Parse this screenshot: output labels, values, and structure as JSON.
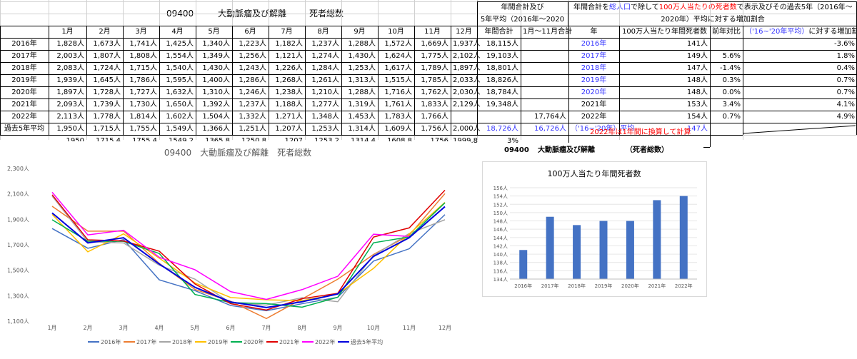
{
  "header": {
    "code": "09400",
    "disease": "大動脈瘤及び解離",
    "metric": "死者総数",
    "box1_line1": "年間合計及び",
    "box1_line2": "5年平均（2016年～2020",
    "box2_pre": "年間合計を",
    "box2_blue1": "総人口",
    "box2_mid1": "で除して",
    "box2_red": "100万人当たりの死者数",
    "box2_post": "で表示及びその過去5年（2016年～",
    "box2_line2": "2020年）平均に対する増加割合"
  },
  "columns": [
    "1月",
    "2月",
    "3月",
    "4月",
    "5月",
    "6月",
    "7月",
    "8月",
    "9月",
    "10月",
    "11月",
    "12月",
    "年間合計",
    "1月～11月合計"
  ],
  "rcolumns": {
    "year": "年",
    "per_million": "100万人当たり年間死者数",
    "yoy": "前年対比",
    "inc_blue": "（'16~'20年平均）",
    "inc_black": "に対する増加割合"
  },
  "rows": [
    {
      "label": "2016年",
      "m": [
        "1,828人",
        "1,673人",
        "1,741人",
        "1,425人",
        "1,340人",
        "1,223人",
        "1,182人",
        "1,237人",
        "1,288人",
        "1,572人",
        "1,669人",
        "1,937人"
      ],
      "total": "18,115人",
      "jan_nov": "",
      "year": "2016年",
      "pm": "141人",
      "yoy": "",
      "inc": "-3.6%",
      "year_blue": true
    },
    {
      "label": "2017年",
      "m": [
        "2,003人",
        "1,807人",
        "1,808人",
        "1,554人",
        "1,349人",
        "1,256人",
        "1,121人",
        "1,274人",
        "1,430人",
        "1,624人",
        "1,775人",
        "2,102人"
      ],
      "total": "19,103人",
      "jan_nov": "",
      "year": "2017年",
      "pm": "149人",
      "yoy": "5.6%",
      "inc": "1.8%",
      "year_blue": true
    },
    {
      "label": "2018年",
      "m": [
        "2,083人",
        "1,724人",
        "1,715人",
        "1,540人",
        "1,430人",
        "1,243人",
        "1,226人",
        "1,284人",
        "1,253人",
        "1,617人",
        "1,789人",
        "1,897人"
      ],
      "total": "18,801人",
      "jan_nov": "",
      "year": "2018年",
      "pm": "147人",
      "yoy": "-1.4%",
      "inc": "0.4%",
      "year_blue": true
    },
    {
      "label": "2019年",
      "m": [
        "1,939人",
        "1,645人",
        "1,786人",
        "1,595人",
        "1,400人",
        "1,286人",
        "1,268人",
        "1,261人",
        "1,313人",
        "1,515人",
        "1,785人",
        "2,033人"
      ],
      "total": "18,826人",
      "jan_nov": "",
      "year": "2019年",
      "pm": "148人",
      "yoy": "0.3%",
      "inc": "0.7%",
      "year_blue": true
    },
    {
      "label": "2020年",
      "m": [
        "1,897人",
        "1,728人",
        "1,727人",
        "1,632人",
        "1,310人",
        "1,246人",
        "1,238人",
        "1,210人",
        "1,288人",
        "1,716人",
        "1,762人",
        "2,030人"
      ],
      "total": "18,784人",
      "jan_nov": "",
      "year": "2020年",
      "pm": "148人",
      "yoy": "0.0%",
      "inc": "0.7%",
      "year_blue": true
    },
    {
      "label": "2021年",
      "m": [
        "2,093人",
        "1,739人",
        "1,730人",
        "1,650人",
        "1,392人",
        "1,237人",
        "1,188人",
        "1,277人",
        "1,319人",
        "1,761人",
        "1,833人",
        "2,129人"
      ],
      "total": "19,348人",
      "jan_nov": "",
      "year": "2021年",
      "pm": "153人",
      "yoy": "3.4%",
      "inc": "4.1%",
      "year_blue": false
    },
    {
      "label": "2022年",
      "m": [
        "2,113人",
        "1,778人",
        "1,814人",
        "1,602人",
        "1,504人",
        "1,332人",
        "1,271人",
        "1,348人",
        "1,453人",
        "1,783人",
        "1,766人",
        ""
      ],
      "total": "",
      "jan_nov": "17,764人",
      "year": "2022年",
      "pm": "154人",
      "yoy": "0.7%",
      "inc": "4.9%",
      "year_blue": false
    },
    {
      "label": "過去5年平均",
      "m": [
        "1,950人",
        "1,715人",
        "1,755人",
        "1,549人",
        "1,366人",
        "1,251人",
        "1,207人",
        "1,253人",
        "1,314人",
        "1,609人",
        "1,756人",
        "2,000人"
      ],
      "total": "18,726人",
      "jan_nov": "16,726人",
      "year": "（'16~'20年）平均",
      "pm": "147人",
      "yoy": "",
      "inc": "",
      "year_blue": true
    }
  ],
  "extra_row": [
    "1950",
    "1715.4",
    "1755.4",
    "1549.2",
    "1365.8",
    "1250.8",
    "1207",
    "1253.2",
    "1314.4",
    "1608.8",
    "1756",
    "1999.8",
    "3%"
  ],
  "note": "2022年は1年間に換算して計算",
  "chart_data": [
    {
      "type": "line",
      "title": "09400　大動脈瘤及び解離　死者総数",
      "categories": [
        "1月",
        "2月",
        "3月",
        "4月",
        "5月",
        "6月",
        "7月",
        "8月",
        "9月",
        "10月",
        "11月",
        "12月"
      ],
      "ylim": [
        1100,
        2300
      ],
      "yticks": [
        "1,100人",
        "1,300人",
        "1,500人",
        "1,700人",
        "1,900人",
        "2,100人",
        "2,300人"
      ],
      "grid": false,
      "legend": "bottom",
      "series": [
        {
          "name": "2016年",
          "color": "#4472c4",
          "width": 1.5,
          "values": [
            1828,
            1673,
            1741,
            1425,
            1340,
            1223,
            1182,
            1237,
            1288,
            1572,
            1669,
            1937
          ]
        },
        {
          "name": "2017年",
          "color": "#ed7d31",
          "width": 1.5,
          "values": [
            2003,
            1807,
            1808,
            1554,
            1349,
            1256,
            1121,
            1274,
            1430,
            1624,
            1775,
            2102
          ]
        },
        {
          "name": "2018年",
          "color": "#a5a5a5",
          "width": 1.5,
          "values": [
            2083,
            1724,
            1715,
            1540,
            1430,
            1243,
            1226,
            1284,
            1253,
            1617,
            1789,
            1897
          ]
        },
        {
          "name": "2019年",
          "color": "#ffc000",
          "width": 1.5,
          "values": [
            1939,
            1645,
            1786,
            1595,
            1400,
            1286,
            1268,
            1261,
            1313,
            1515,
            1785,
            2033
          ]
        },
        {
          "name": "2020年",
          "color": "#00b050",
          "width": 1.5,
          "values": [
            1897,
            1728,
            1727,
            1632,
            1310,
            1246,
            1238,
            1210,
            1288,
            1716,
            1762,
            2030
          ]
        },
        {
          "name": "2021年",
          "color": "#e00000",
          "width": 1.5,
          "values": [
            2093,
            1739,
            1730,
            1650,
            1392,
            1237,
            1188,
            1277,
            1319,
            1761,
            1833,
            2129
          ]
        },
        {
          "name": "2022年",
          "color": "#ff00ff",
          "width": 1.5,
          "values": [
            2113,
            1778,
            1814,
            1602,
            1504,
            1332,
            1271,
            1348,
            1453,
            1783,
            1766,
            null
          ]
        },
        {
          "name": "過去5年平均",
          "color": "#0000dd",
          "width": 2,
          "values": [
            1950,
            1715,
            1755,
            1549,
            1366,
            1251,
            1207,
            1253,
            1314,
            1609,
            1756,
            2000
          ]
        }
      ]
    },
    {
      "type": "bar",
      "title": "100万人当たり年間死者数",
      "caption_code": "09400",
      "caption_name": "大動脈瘤及び解離",
      "caption_metric": "（死者総数）",
      "categories": [
        "2016年",
        "2017年",
        "2018年",
        "2019年",
        "2020年",
        "2021年",
        "2022年"
      ],
      "values": [
        141,
        149,
        147,
        148,
        148,
        153,
        154
      ],
      "ylim": [
        134,
        156
      ],
      "yticks": [
        "134人",
        "136人",
        "138人",
        "140人",
        "142人",
        "144人",
        "146人",
        "148人",
        "150人",
        "152人",
        "154人",
        "156人"
      ],
      "color": "#4472c4",
      "grid": true
    }
  ]
}
